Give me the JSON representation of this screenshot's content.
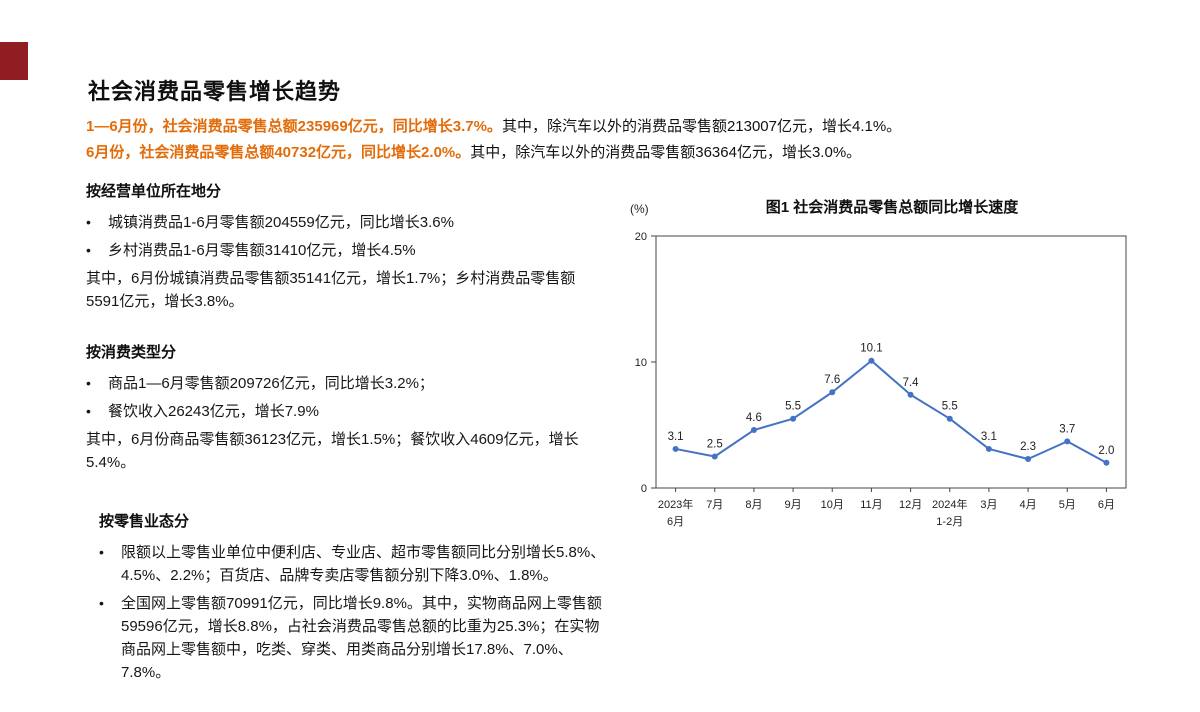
{
  "slide": {
    "title": "社会消费品零售增长趋势",
    "accent_color": "#e36c0a",
    "corner_color": "#8f1d22",
    "summary": [
      {
        "highlight": "1—6月份，社会消费品零售总额235969亿元，同比增长3.7%。",
        "rest": "其中，除汽车以外的消费品零售额213007亿元，增长4.1%。"
      },
      {
        "highlight": "6月份，社会消费品零售总额40732亿元，同比增长2.0%。",
        "rest": "其中，除汽车以外的消费品零售额36364亿元，增长3.0%。"
      }
    ],
    "sections": [
      {
        "heading": "按经营单位所在地分",
        "bullets": [
          "城镇消费品1-6月零售额204559亿元，同比增长3.6%",
          "乡村消费品1-6月零售额31410亿元，增长4.5%"
        ],
        "note": "其中，6月份城镇消费品零售额35141亿元，增长1.7%；乡村消费品零售额5591亿元，增长3.8%。"
      },
      {
        "heading": "按消费类型分",
        "bullets": [
          "商品1—6月零售额209726亿元，同比增长3.2%；",
          "餐饮收入26243亿元，增长7.9%"
        ],
        "note": "其中，6月份商品零售额36123亿元，增长1.5%；餐饮收入4609亿元，增长5.4%。"
      },
      {
        "heading": "按零售业态分",
        "bullets": [
          "限额以上零售业单位中便利店、专业店、超市零售额同比分别增长5.8%、4.5%、2.2%；百货店、品牌专卖店零售额分别下降3.0%、1.8%。",
          "全国网上零售额70991亿元，同比增长9.8%。其中，实物商品网上零售额59596亿元，增长8.8%，占社会消费品零售总额的比重为25.3%；在实物商品网上零售额中，吃类、穿类、用类商品分别增长17.8%、7.0%、7.8%。"
        ],
        "note": ""
      }
    ]
  },
  "chart_data": {
    "type": "line",
    "title": "图1 社会消费品零售总额同比增长速度",
    "y_unit": "(%)",
    "x_labels": [
      {
        "line1": "2023年",
        "line2": "6月"
      },
      {
        "line1": "7月",
        "line2": ""
      },
      {
        "line1": "8月",
        "line2": ""
      },
      {
        "line1": "9月",
        "line2": ""
      },
      {
        "line1": "10月",
        "line2": ""
      },
      {
        "line1": "11月",
        "line2": ""
      },
      {
        "line1": "12月",
        "line2": ""
      },
      {
        "line1": "2024年",
        "line2": "1-2月"
      },
      {
        "line1": "3月",
        "line2": ""
      },
      {
        "line1": "4月",
        "line2": ""
      },
      {
        "line1": "5月",
        "line2": ""
      },
      {
        "line1": "6月",
        "line2": ""
      }
    ],
    "values": [
      3.1,
      2.5,
      4.6,
      5.5,
      7.6,
      10.1,
      7.4,
      5.5,
      3.1,
      2.3,
      3.7,
      2.0
    ],
    "ylim": [
      0,
      20
    ],
    "yticks": [
      0,
      10,
      20
    ],
    "line_color": "#4472c4",
    "grid": false,
    "legend": "none"
  }
}
